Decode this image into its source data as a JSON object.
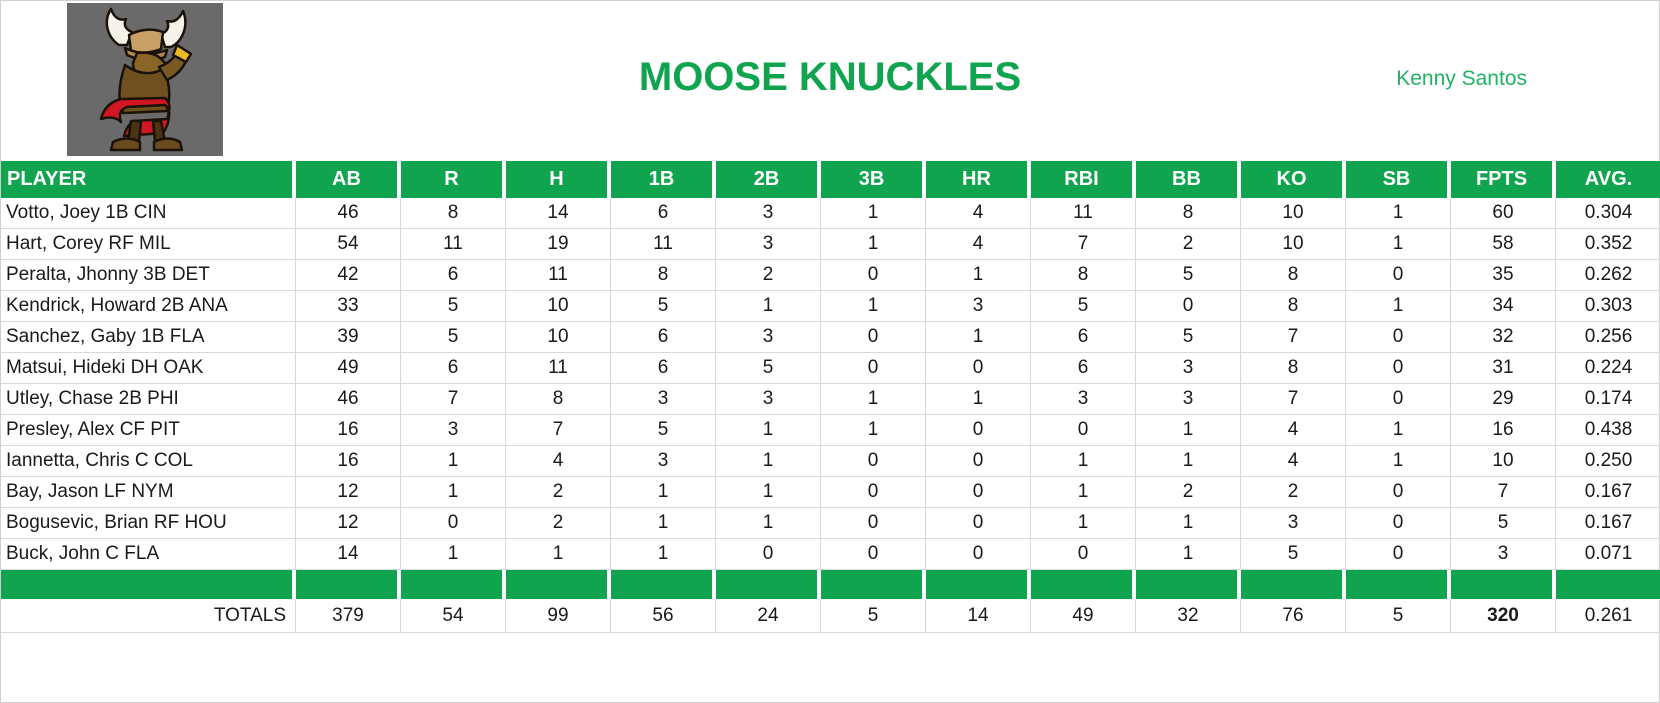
{
  "banner": {
    "title": "MOOSE KNUCKLES",
    "owner": "Kenny Santos",
    "logo_icon": "moose-mascot-icon"
  },
  "colors": {
    "accent_green": "#10a44e",
    "owner_green": "#22b263",
    "grid_gray": "#d9d9d9",
    "logo_bg_gray": "#6a6a6a",
    "text_black": "#1a1a1a"
  },
  "table": {
    "columns": [
      "PLAYER",
      "AB",
      "R",
      "H",
      "1B",
      "2B",
      "3B",
      "HR",
      "RBI",
      "BB",
      "KO",
      "SB",
      "FPTS",
      "AVG."
    ],
    "rows": [
      {
        "player": "Votto, Joey 1B CIN",
        "stats": [
          "46",
          "8",
          "14",
          "6",
          "3",
          "1",
          "4",
          "11",
          "8",
          "10",
          "1",
          "60",
          "0.304"
        ]
      },
      {
        "player": "Hart, Corey RF MIL",
        "stats": [
          "54",
          "11",
          "19",
          "11",
          "3",
          "1",
          "4",
          "7",
          "2",
          "10",
          "1",
          "58",
          "0.352"
        ]
      },
      {
        "player": "Peralta, Jhonny 3B DET",
        "stats": [
          "42",
          "6",
          "11",
          "8",
          "2",
          "0",
          "1",
          "8",
          "5",
          "8",
          "0",
          "35",
          "0.262"
        ]
      },
      {
        "player": "Kendrick, Howard 2B ANA",
        "stats": [
          "33",
          "5",
          "10",
          "5",
          "1",
          "1",
          "3",
          "5",
          "0",
          "8",
          "1",
          "34",
          "0.303"
        ]
      },
      {
        "player": "Sanchez, Gaby 1B FLA",
        "stats": [
          "39",
          "5",
          "10",
          "6",
          "3",
          "0",
          "1",
          "6",
          "5",
          "7",
          "0",
          "32",
          "0.256"
        ]
      },
      {
        "player": "Matsui, Hideki DH OAK",
        "stats": [
          "49",
          "6",
          "11",
          "6",
          "5",
          "0",
          "0",
          "6",
          "3",
          "8",
          "0",
          "31",
          "0.224"
        ]
      },
      {
        "player": "Utley, Chase 2B PHI",
        "stats": [
          "46",
          "7",
          "8",
          "3",
          "3",
          "1",
          "1",
          "3",
          "3",
          "7",
          "0",
          "29",
          "0.174"
        ]
      },
      {
        "player": "Presley, Alex CF PIT",
        "stats": [
          "16",
          "3",
          "7",
          "5",
          "1",
          "1",
          "0",
          "0",
          "1",
          "4",
          "1",
          "16",
          "0.438"
        ]
      },
      {
        "player": "Iannetta, Chris C COL",
        "stats": [
          "16",
          "1",
          "4",
          "3",
          "1",
          "0",
          "0",
          "1",
          "1",
          "4",
          "1",
          "10",
          "0.250"
        ]
      },
      {
        "player": "Bay, Jason LF NYM",
        "stats": [
          "12",
          "1",
          "2",
          "1",
          "1",
          "0",
          "0",
          "1",
          "2",
          "2",
          "0",
          "7",
          "0.167"
        ]
      },
      {
        "player": "Bogusevic, Brian RF HOU",
        "stats": [
          "12",
          "0",
          "2",
          "1",
          "1",
          "0",
          "0",
          "1",
          "1",
          "3",
          "0",
          "5",
          "0.167"
        ]
      },
      {
        "player": "Buck, John C FLA",
        "stats": [
          "14",
          "1",
          "1",
          "1",
          "0",
          "0",
          "0",
          "0",
          "1",
          "5",
          "0",
          "3",
          "0.071"
        ]
      }
    ],
    "totals": {
      "label": "TOTALS",
      "stats": [
        "379",
        "54",
        "99",
        "56",
        "24",
        "5",
        "14",
        "49",
        "32",
        "76",
        "5",
        "320",
        "0.261"
      ]
    }
  }
}
